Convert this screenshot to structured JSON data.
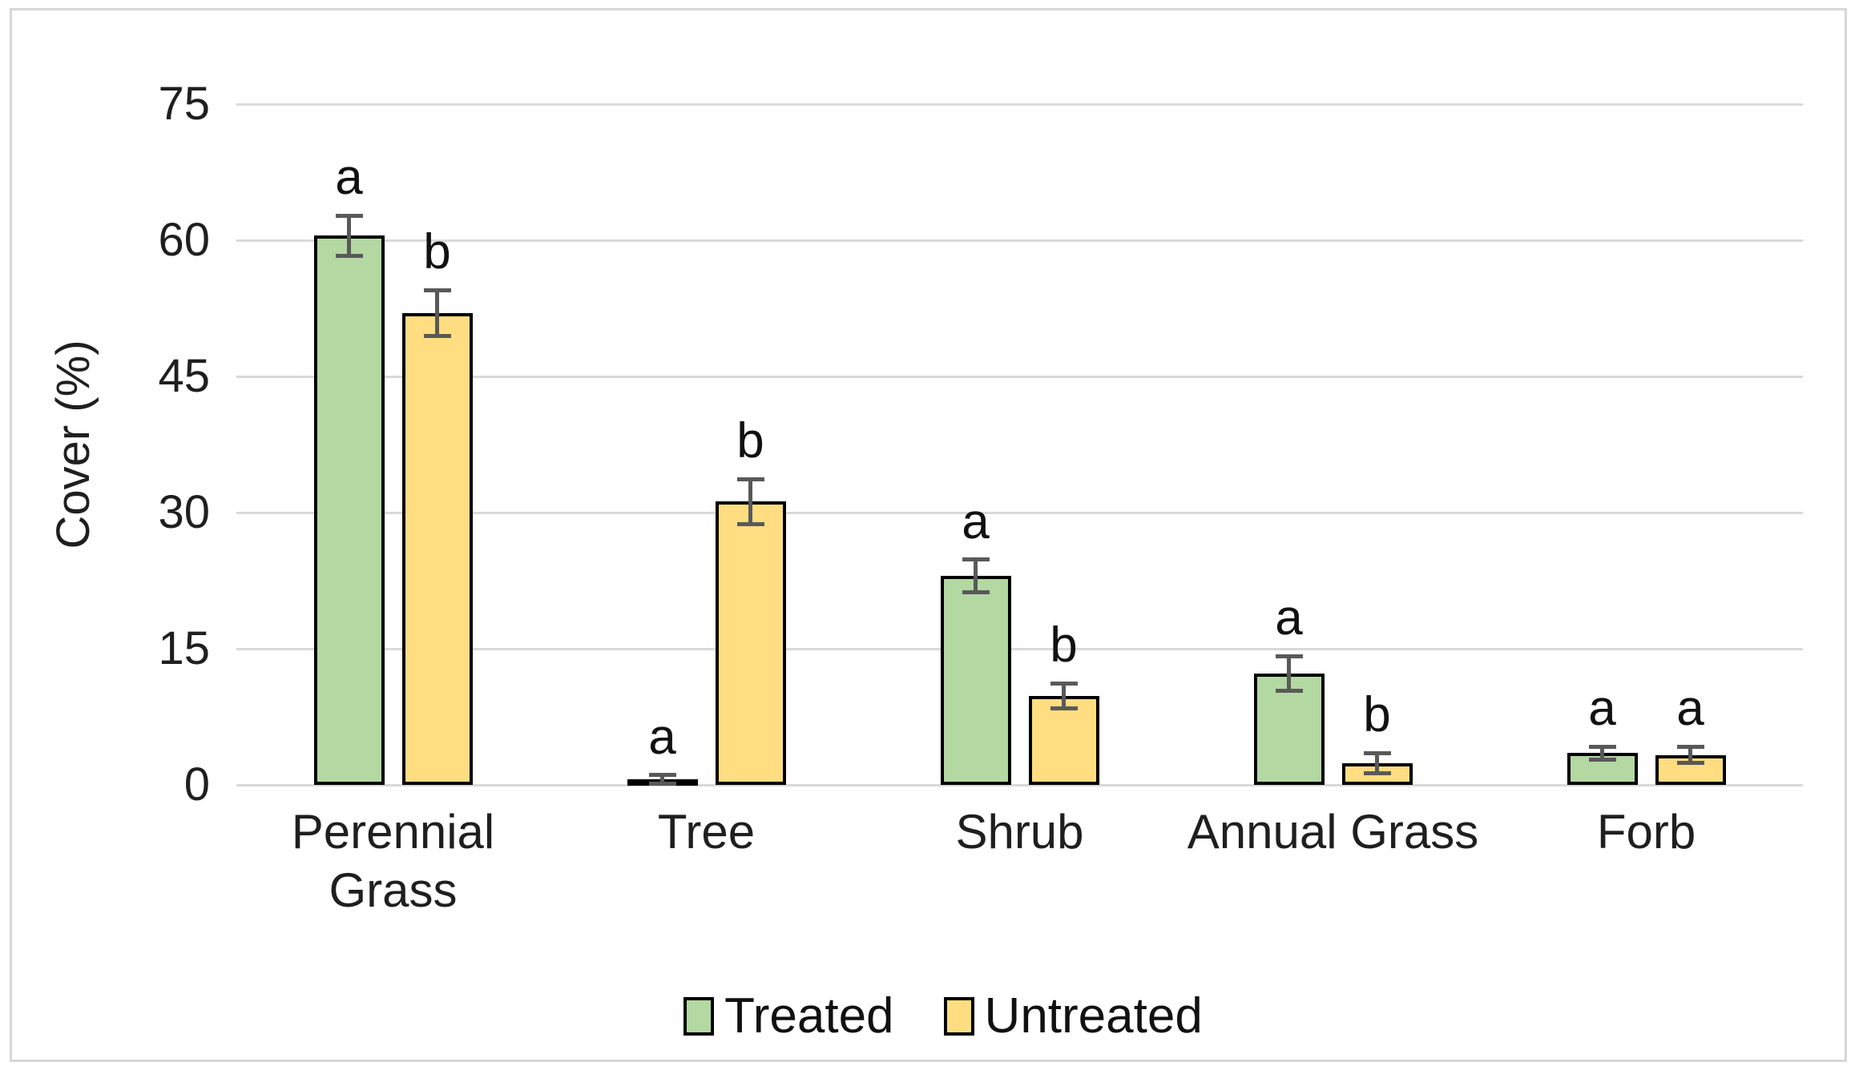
{
  "chart_data": {
    "type": "bar",
    "title": "",
    "xlabel": "",
    "ylabel": "Cover (%)",
    "ylim": [
      0,
      75
    ],
    "yticks": [
      0,
      15,
      30,
      45,
      60,
      75
    ],
    "grid": true,
    "legend_position": "bottom",
    "categories": [
      "Perennial Grass",
      "Tree",
      "Shrub",
      "Annual Grass",
      "Forb"
    ],
    "series": [
      {
        "name": "Treated",
        "color": "#B3D8A2",
        "values": [
          60.5,
          0.6,
          23.0,
          12.3,
          3.5
        ],
        "errors": [
          2.2,
          0.5,
          1.8,
          1.9,
          0.7
        ],
        "letters": [
          "a",
          "a",
          "a",
          "a",
          "a"
        ]
      },
      {
        "name": "Untreated",
        "color": "#FFDD80",
        "values": [
          52.0,
          31.2,
          9.8,
          2.4,
          3.3
        ],
        "errors": [
          2.5,
          2.5,
          1.4,
          1.1,
          0.9
        ],
        "letters": [
          "b",
          "b",
          "b",
          "b",
          "a"
        ]
      }
    ],
    "colors": {
      "bar_border": "#000000",
      "error_bar": "#595959",
      "gridline": "#D9D9D9",
      "frame_border": "#D7D7D7",
      "text": "#1f1f1f"
    }
  }
}
